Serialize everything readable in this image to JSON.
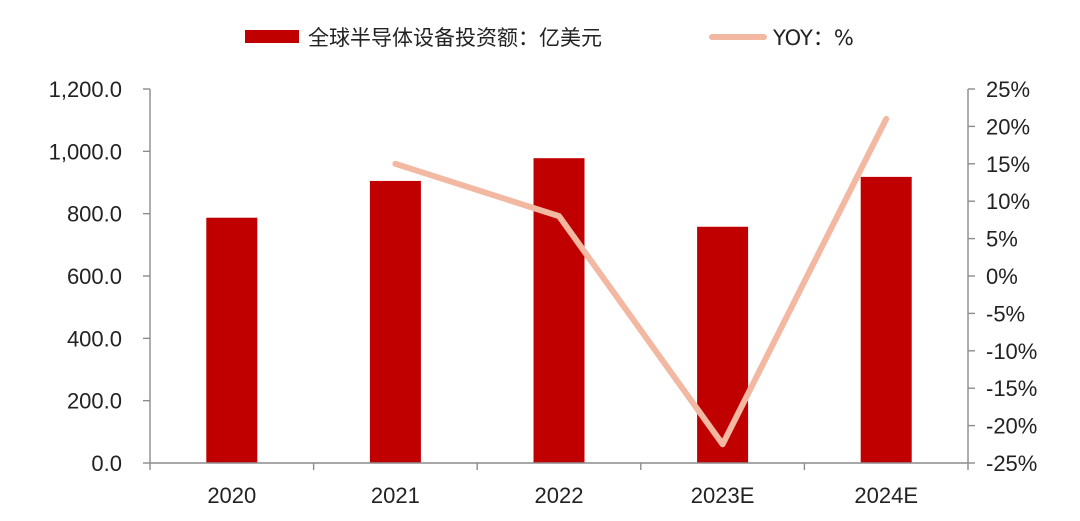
{
  "chart_data": {
    "type": "bar",
    "categories": [
      "2020",
      "2021",
      "2022",
      "2023E",
      "2024E"
    ],
    "series": [
      {
        "name": "全球半导体设备投资额：亿美元",
        "type": "bar",
        "axis": "left",
        "color": "#c00000",
        "values": [
          787,
          905,
          978,
          758,
          918
        ]
      },
      {
        "name": "YOY：%",
        "type": "line",
        "axis": "right",
        "color": "#f2b8a2",
        "values": [
          null,
          15,
          8,
          -22.5,
          21
        ]
      }
    ],
    "y_left": {
      "ylim": [
        0,
        1200
      ],
      "ticks": [
        "0.0",
        "200.0",
        "400.0",
        "600.0",
        "800.0",
        "1,000.0",
        "1,200.0"
      ]
    },
    "y_right": {
      "ylim": [
        -25,
        25
      ],
      "ticks": [
        "-25%",
        "-20%",
        "-15%",
        "-10%",
        "-5%",
        "0%",
        "5%",
        "10%",
        "15%",
        "20%",
        "25%"
      ]
    },
    "title": "",
    "xlabel": "",
    "grid": false,
    "legend": "top-center"
  }
}
